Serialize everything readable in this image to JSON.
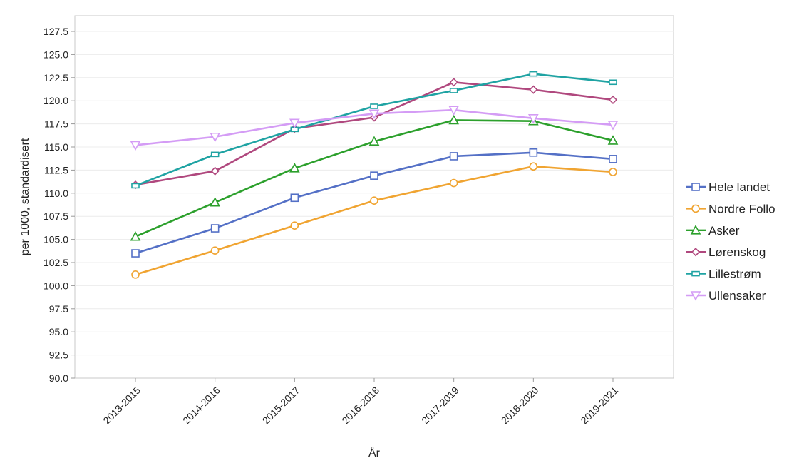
{
  "chart_data": {
    "type": "line",
    "title": "",
    "xlabel": "År",
    "ylabel": "per 1000, standardisert",
    "categories": [
      "2013-2015",
      "2014-2016",
      "2015-2017",
      "2016-2018",
      "2017-2019",
      "2018-2020",
      "2019-2021"
    ],
    "ylim": [
      90.0,
      127.5
    ],
    "yticks": [
      "90.0",
      "92.5",
      "95.0",
      "97.5",
      "100.0",
      "102.5",
      "105.0",
      "107.5",
      "110.0",
      "112.5",
      "115.0",
      "117.5",
      "120.0",
      "122.5",
      "125.0",
      "127.5"
    ],
    "grid": true,
    "legend_position": "right",
    "series": [
      {
        "name": "Hele landet",
        "color": "#5470c6",
        "marker": "square",
        "values": [
          103.5,
          106.2,
          109.5,
          111.9,
          114.0,
          114.4,
          113.7
        ]
      },
      {
        "name": "Nordre Follo",
        "color": "#f0a431",
        "marker": "circle",
        "values": [
          101.2,
          103.8,
          106.5,
          109.2,
          111.1,
          112.9,
          112.3
        ]
      },
      {
        "name": "Asker",
        "color": "#2ca02c",
        "marker": "triangle-up",
        "values": [
          105.3,
          109.0,
          112.7,
          115.6,
          117.9,
          117.8,
          115.7
        ]
      },
      {
        "name": "Lørenskog",
        "color": "#b0487e",
        "marker": "diamond",
        "values": [
          110.9,
          112.4,
          117.0,
          118.2,
          122.0,
          121.2,
          120.1
        ]
      },
      {
        "name": "Lillestrøm",
        "color": "#1fa3a3",
        "marker": "rect-wide",
        "values": [
          110.8,
          114.2,
          116.9,
          119.4,
          121.1,
          122.9,
          122.0
        ]
      },
      {
        "name": "Ullensaker",
        "color": "#d49cf5",
        "marker": "triangle-down",
        "values": [
          115.2,
          116.1,
          117.6,
          118.6,
          119.0,
          118.1,
          117.4
        ]
      }
    ]
  }
}
